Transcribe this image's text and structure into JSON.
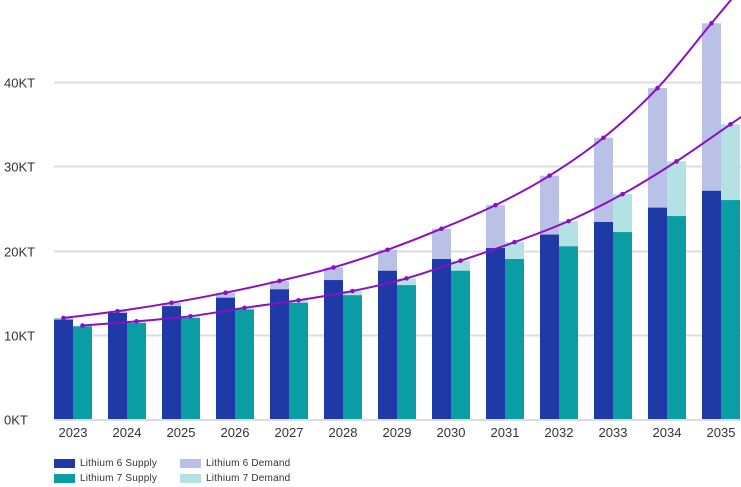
{
  "chart_data": {
    "type": "bar",
    "stacked_overlay": true,
    "title": "",
    "xlabel": "",
    "ylabel": "",
    "ylim": [
      0,
      48
    ],
    "y_unit_suffix": "KT",
    "y_ticks": [
      0,
      10,
      20,
      30,
      40
    ],
    "y_tick_labels": [
      "0KT",
      "10KT",
      "20KT",
      "30KT",
      "40KT"
    ],
    "grid": true,
    "legend_position": "bottom-left",
    "categories": [
      "2023",
      "2024",
      "2025",
      "2026",
      "2027",
      "2028",
      "2029",
      "2030",
      "2031",
      "2032",
      "2033",
      "2034",
      "2035"
    ],
    "series": [
      {
        "name": "Lithium 6 Supply",
        "kind": "bar",
        "group": "li6",
        "color": "#1f39a6",
        "values": [
          11.8,
          12.6,
          13.4,
          14.4,
          15.4,
          16.5,
          17.6,
          19.0,
          20.3,
          21.9,
          23.4,
          25.1,
          27.1
        ]
      },
      {
        "name": "Lithium 7 Supply",
        "kind": "bar",
        "group": "li7",
        "color": "#0a9ea4",
        "values": [
          11.0,
          11.4,
          12.0,
          13.0,
          13.8,
          14.7,
          15.9,
          17.6,
          19.0,
          20.5,
          22.2,
          24.1,
          26.0
        ]
      },
      {
        "name": "Lithium 6 Demand",
        "kind": "bar",
        "group": "li6",
        "color": "#b9c1e6",
        "values": [
          12.0,
          12.8,
          13.8,
          15.0,
          16.4,
          18.0,
          20.1,
          22.6,
          25.4,
          28.9,
          33.4,
          39.3,
          47.0
        ]
      },
      {
        "name": "Lithium 7 Demand",
        "kind": "bar",
        "group": "li7",
        "color": "#b3e1e4",
        "values": [
          11.1,
          11.6,
          12.2,
          13.2,
          14.1,
          15.2,
          16.7,
          18.8,
          21.0,
          23.5,
          26.7,
          30.6,
          35.0
        ]
      }
    ],
    "trend_lines": [
      {
        "name": "Lithium 6 Demand trend",
        "group": "li6",
        "color": "#8a10c0",
        "arrow": true
      },
      {
        "name": "Lithium 7 Demand trend",
        "group": "li7",
        "color": "#8a10c0",
        "arrow": true
      }
    ]
  },
  "legend": {
    "items": [
      {
        "label": "Lithium 6 Supply",
        "color": "#1f39a6"
      },
      {
        "label": "Lithium 7 Supply",
        "color": "#0a9ea4"
      },
      {
        "label": "Lithium 6 Demand",
        "color": "#b9c1e6"
      },
      {
        "label": "Lithium 7 Demand",
        "color": "#b3e1e4"
      }
    ]
  }
}
